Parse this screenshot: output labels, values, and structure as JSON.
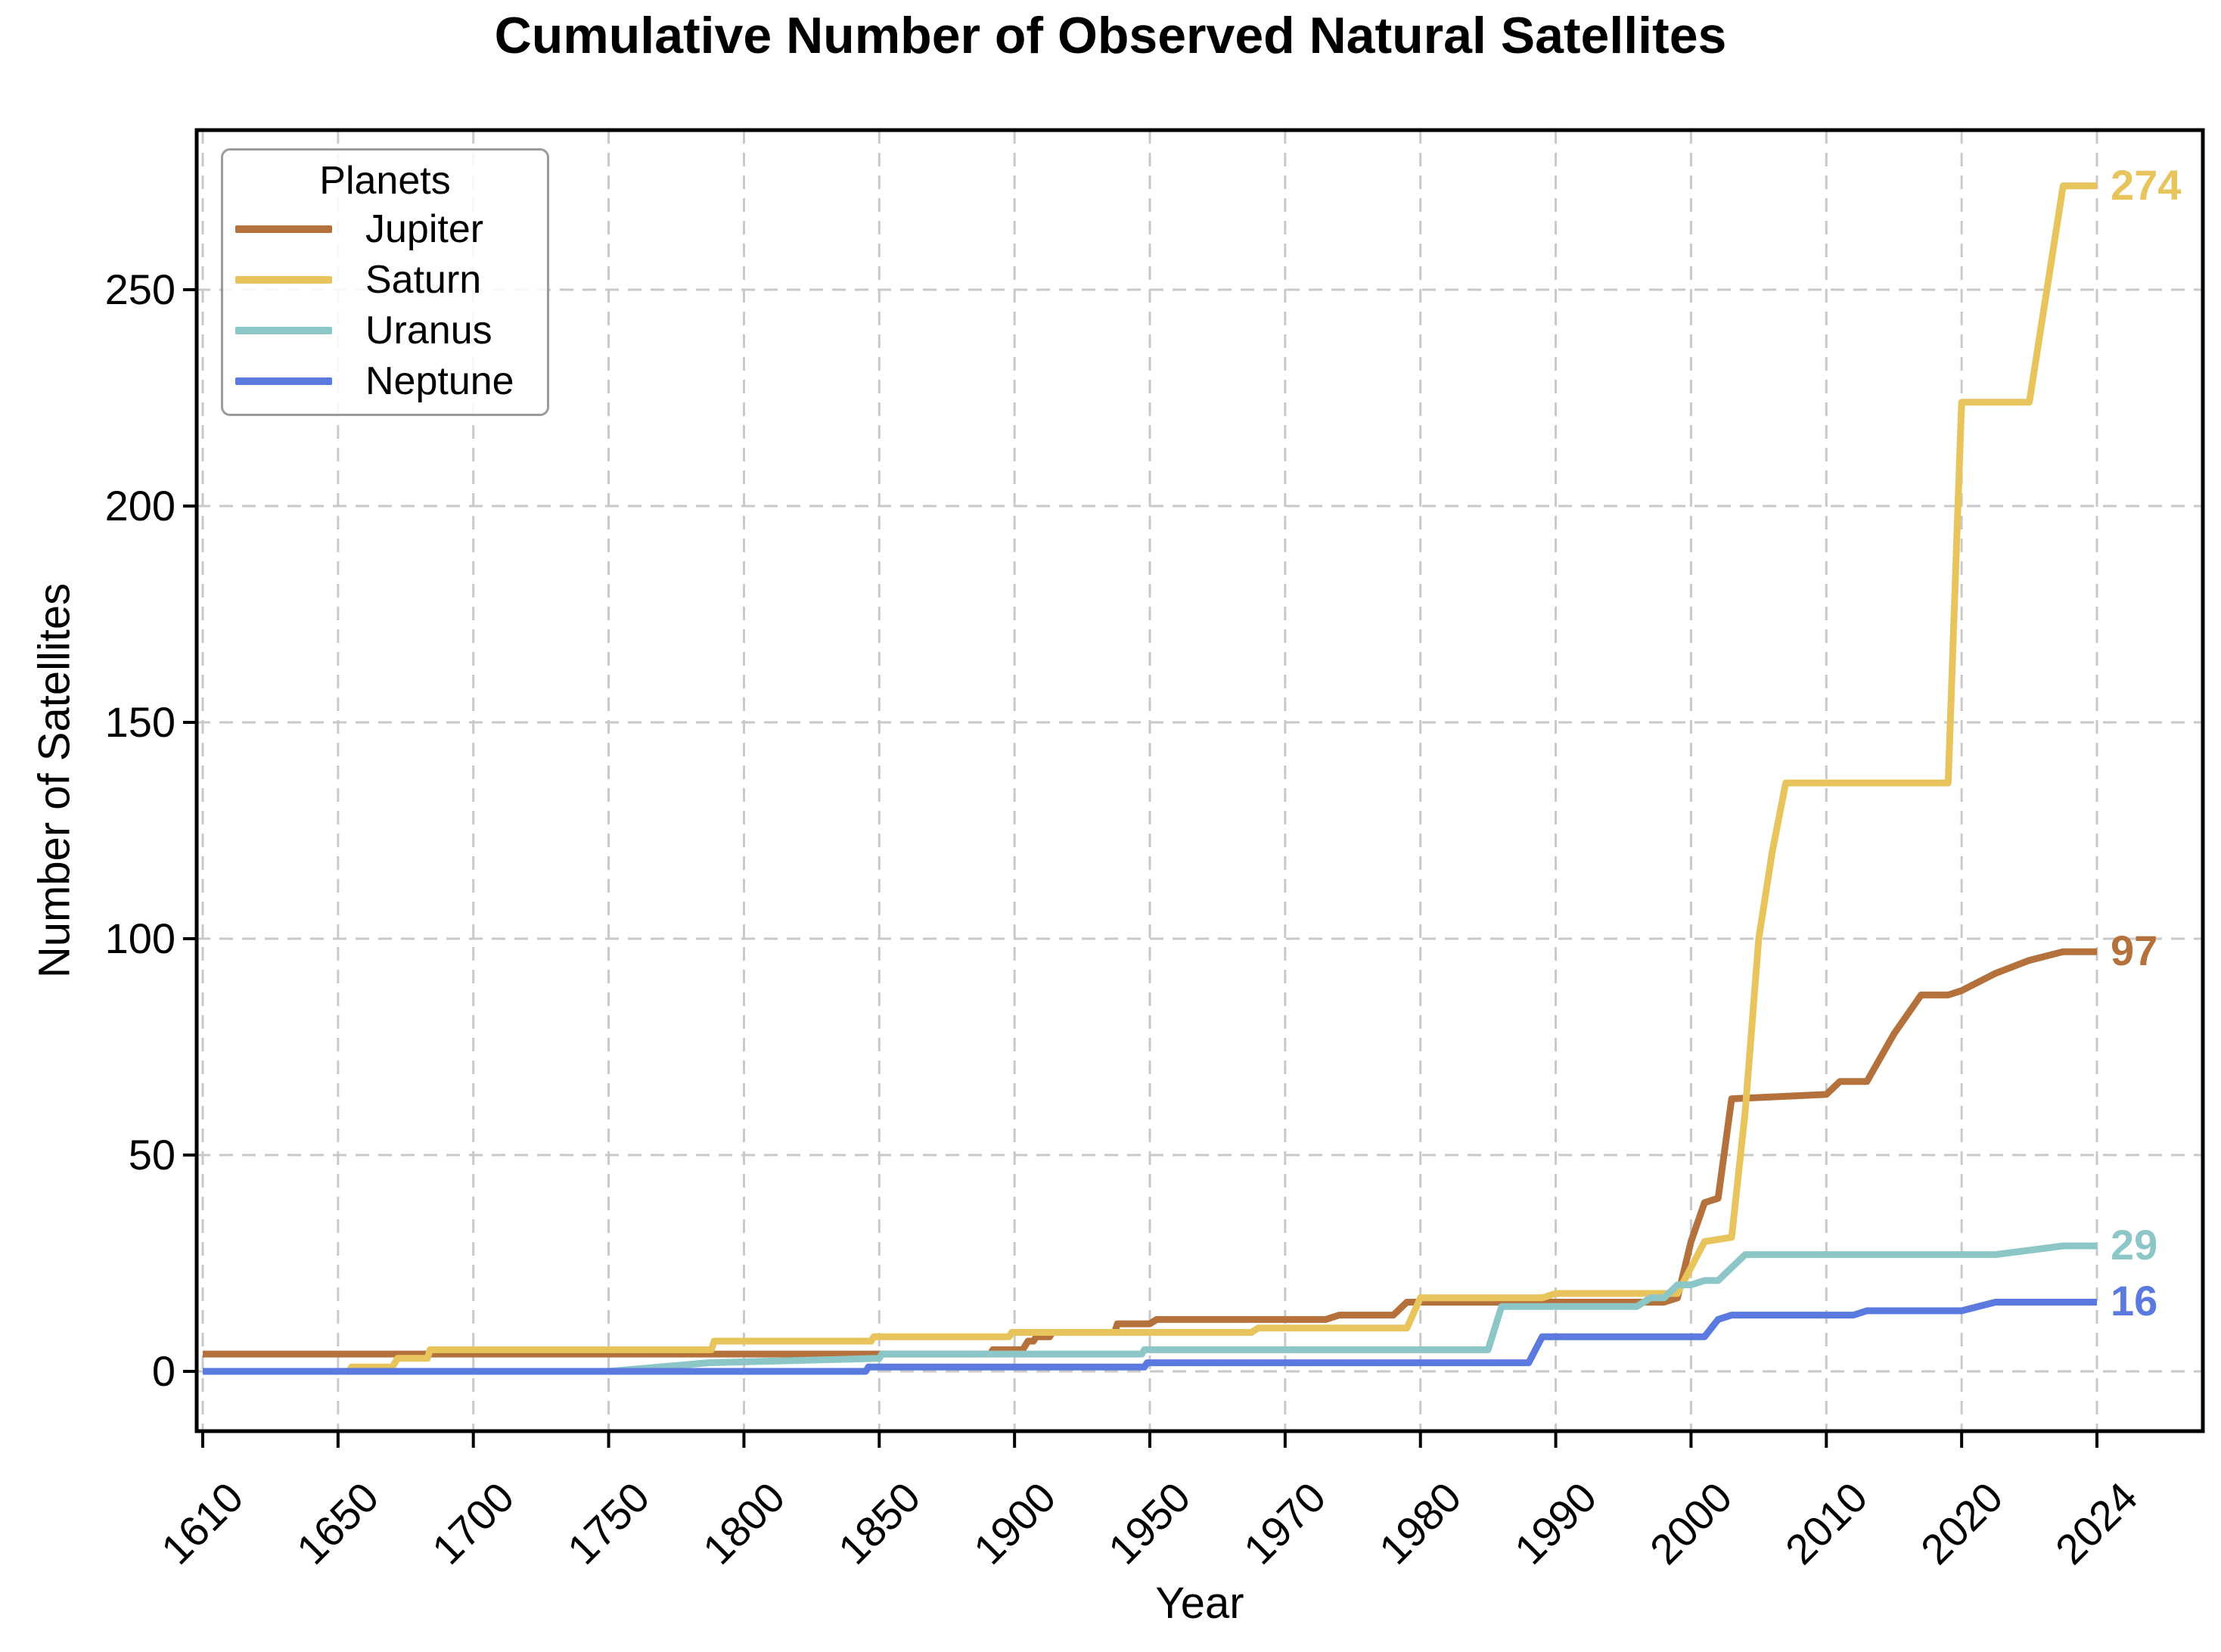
{
  "title": "Cumulative Number of Observed Natural Satellites",
  "x_axis": {
    "label": "Year"
  },
  "y_axis": {
    "label": "Number of Satellites"
  },
  "legend": {
    "title": "Planets"
  },
  "colors": {
    "background": "#ffffff",
    "grid": "#c9c9c9",
    "spine": "#000000",
    "legend_border": "#9b9b9b"
  },
  "chart_data": {
    "type": "line",
    "title": "Cumulative Number of Observed Natural Satellites",
    "xlabel": "Year",
    "ylabel": "Number of Satellites",
    "x_tick_labels": [
      "1610",
      "1650",
      "1700",
      "1750",
      "1800",
      "1850",
      "1900",
      "1950",
      "1970",
      "1980",
      "1990",
      "2000",
      "2010",
      "2020",
      "2024"
    ],
    "x_tick_values": [
      1610,
      1650,
      1700,
      1750,
      1800,
      1850,
      1900,
      1950,
      1970,
      1980,
      1990,
      2000,
      2010,
      2020,
      2024
    ],
    "x_axis_note": "categorical axis: listed tick years are evenly spaced; data years interpolate linearly between adjacent ticks",
    "y_ticks": [
      0,
      50,
      100,
      150,
      200,
      250
    ],
    "ylim": [
      -14,
      287
    ],
    "grid": true,
    "legend_title": "Planets",
    "legend_position": "upper left",
    "series": [
      {
        "name": "Jupiter",
        "color": "#b5713c",
        "final_value": 97,
        "end_label": "97",
        "points": [
          [
            1610,
            4
          ],
          [
            1891,
            4
          ],
          [
            1892,
            5
          ],
          [
            1903,
            5
          ],
          [
            1904,
            6
          ],
          [
            1905,
            7
          ],
          [
            1907,
            7
          ],
          [
            1908,
            8
          ],
          [
            1913,
            8
          ],
          [
            1914,
            9
          ],
          [
            1937,
            9
          ],
          [
            1938,
            11
          ],
          [
            1950,
            11
          ],
          [
            1951,
            12
          ],
          [
            1973,
            12
          ],
          [
            1974,
            13
          ],
          [
            1978,
            13
          ],
          [
            1979,
            16
          ],
          [
            1998,
            16
          ],
          [
            1999,
            17
          ],
          [
            2000,
            30
          ],
          [
            2001,
            39
          ],
          [
            2002,
            40
          ],
          [
            2003,
            63
          ],
          [
            2010,
            64
          ],
          [
            2011,
            67
          ],
          [
            2013,
            67
          ],
          [
            2015,
            78
          ],
          [
            2017,
            87
          ],
          [
            2019,
            87
          ],
          [
            2020,
            88
          ],
          [
            2021,
            92
          ],
          [
            2022,
            95
          ],
          [
            2023,
            97
          ],
          [
            2024,
            97
          ]
        ]
      },
      {
        "name": "Saturn",
        "color": "#e8c45c",
        "final_value": 274,
        "end_label": "274",
        "points": [
          [
            1610,
            0
          ],
          [
            1654,
            0
          ],
          [
            1655,
            1
          ],
          [
            1670,
            1
          ],
          [
            1671,
            2
          ],
          [
            1672,
            3
          ],
          [
            1683,
            3
          ],
          [
            1684,
            5
          ],
          [
            1788,
            5
          ],
          [
            1789,
            7
          ],
          [
            1847,
            7
          ],
          [
            1848,
            8
          ],
          [
            1898,
            8
          ],
          [
            1899,
            9
          ],
          [
            1965,
            9
          ],
          [
            1966,
            10
          ],
          [
            1979,
            10
          ],
          [
            1980,
            17
          ],
          [
            1989,
            17
          ],
          [
            1990,
            18
          ],
          [
            1999,
            18
          ],
          [
            2000,
            24
          ],
          [
            2001,
            30
          ],
          [
            2003,
            31
          ],
          [
            2004,
            60
          ],
          [
            2005,
            100
          ],
          [
            2006,
            120
          ],
          [
            2007,
            136
          ],
          [
            2019,
            136
          ],
          [
            2020,
            224
          ],
          [
            2022,
            224
          ],
          [
            2023,
            274
          ],
          [
            2024,
            274
          ]
        ]
      },
      {
        "name": "Uranus",
        "color": "#8dc6c7",
        "final_value": 29,
        "end_label": "29",
        "points": [
          [
            1610,
            0
          ],
          [
            1750,
            0
          ],
          [
            1787,
            2
          ],
          [
            1850,
            3
          ],
          [
            1851,
            4
          ],
          [
            1947,
            4
          ],
          [
            1948,
            5
          ],
          [
            1985,
            5
          ],
          [
            1986,
            15
          ],
          [
            1996,
            15
          ],
          [
            1997,
            17
          ],
          [
            1998,
            17
          ],
          [
            1999,
            20
          ],
          [
            2000,
            20
          ],
          [
            2001,
            21
          ],
          [
            2002,
            21
          ],
          [
            2003,
            24
          ],
          [
            2004,
            27
          ],
          [
            2021,
            27
          ],
          [
            2023,
            29
          ],
          [
            2024,
            29
          ]
        ]
      },
      {
        "name": "Neptune",
        "color": "#5b7ae0",
        "final_value": 16,
        "end_label": "16",
        "points": [
          [
            1610,
            0
          ],
          [
            1845,
            0
          ],
          [
            1846,
            1
          ],
          [
            1948,
            1
          ],
          [
            1949,
            2
          ],
          [
            1988,
            2
          ],
          [
            1989,
            8
          ],
          [
            2001,
            8
          ],
          [
            2002,
            12
          ],
          [
            2003,
            13
          ],
          [
            2012,
            13
          ],
          [
            2013,
            14
          ],
          [
            2020,
            14
          ],
          [
            2021,
            16
          ],
          [
            2024,
            16
          ]
        ]
      }
    ]
  }
}
